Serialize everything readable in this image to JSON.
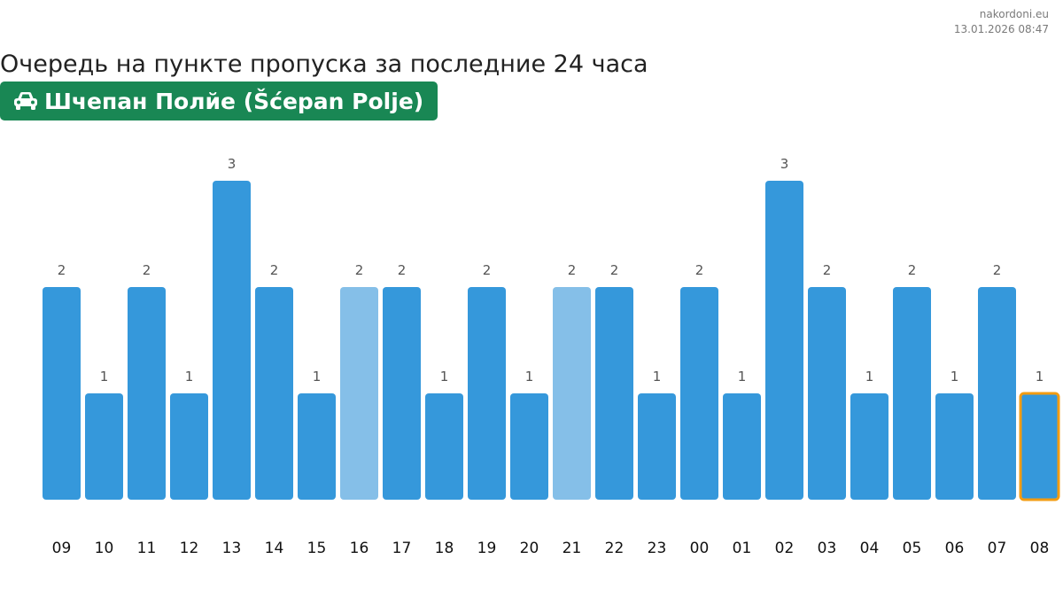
{
  "header": {
    "site": "nakordoni.eu",
    "timestamp": "13.01.2026 08:47",
    "title": "Очередь на пункте пропуска за последние 24 часа",
    "checkpoint": "Шчепан Полйе (Šćepan Polje)",
    "checkpoint_icon": "car-icon",
    "badge_color": "#198754"
  },
  "chart_data": {
    "type": "bar",
    "categories": [
      "09",
      "10",
      "11",
      "12",
      "13",
      "14",
      "15",
      "16",
      "17",
      "18",
      "19",
      "20",
      "21",
      "22",
      "23",
      "00",
      "01",
      "02",
      "03",
      "04",
      "05",
      "06",
      "07",
      "08"
    ],
    "values": [
      2,
      1,
      2,
      1,
      3,
      2,
      1,
      2,
      2,
      1,
      2,
      1,
      2,
      2,
      1,
      2,
      1,
      3,
      2,
      1,
      2,
      1,
      2,
      1
    ],
    "ylim": [
      0,
      3
    ],
    "grid": false,
    "light_bars": [
      "16",
      "21"
    ],
    "highlighted_bar": "08",
    "colors": {
      "bar": "#3598db",
      "bar_light": "#85bfe8",
      "highlight_border": "#f39c12"
    }
  }
}
